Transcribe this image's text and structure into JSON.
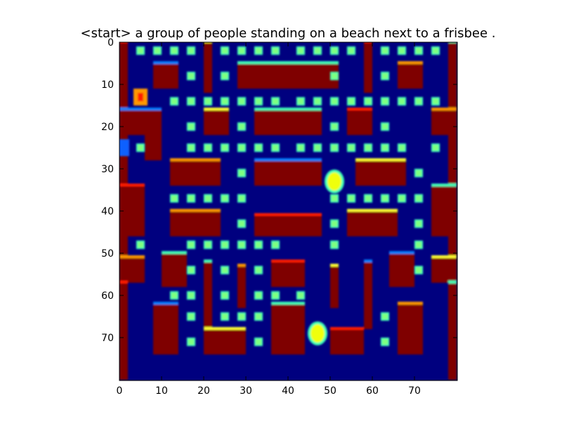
{
  "title": "<start> a group of people standing on a beach next to a frisbee .",
  "chart_data": {
    "type": "heatmap",
    "title": "<start> a group of people standing on a beach next to a frisbee .",
    "colormap": "jet",
    "xlim": [
      0,
      80
    ],
    "ylim": [
      80,
      0
    ],
    "x_ticks": [
      0,
      10,
      20,
      30,
      40,
      50,
      60,
      70
    ],
    "y_ticks": [
      0,
      10,
      20,
      30,
      40,
      50,
      60,
      70
    ],
    "xlabel": "",
    "ylabel": "",
    "grid": false,
    "colors": {
      "background": "#00007f",
      "wall": "#7f0000",
      "wall_edge_red": "#ff1a00",
      "wall_edge_cyan": "#3fffb7",
      "wall_edge_blue": "#0080ff",
      "wall_edge_orange": "#ff9900",
      "wall_edge_yellow": "#ffff33",
      "pellet": "#7fff7f",
      "pacman": "#f0ff10",
      "ghost_blue": "#1060ff",
      "ghost_orange": "#ff8000"
    },
    "walls": [
      [
        0,
        0,
        2,
        80
      ],
      [
        78,
        0,
        2,
        80
      ],
      [
        8,
        5,
        6,
        6
      ],
      [
        66,
        5,
        6,
        6
      ],
      [
        20,
        0,
        2,
        12
      ],
      [
        58,
        0,
        2,
        12
      ],
      [
        28,
        5,
        24,
        6
      ],
      [
        0,
        16,
        6,
        6
      ],
      [
        74,
        16,
        6,
        6
      ],
      [
        20,
        16,
        6,
        6
      ],
      [
        54,
        16,
        6,
        6
      ],
      [
        32,
        16,
        16,
        6
      ],
      [
        6,
        16,
        4,
        12
      ],
      [
        12,
        28,
        12,
        6
      ],
      [
        56,
        28,
        12,
        6
      ],
      [
        0,
        34,
        6,
        12
      ],
      [
        74,
        34,
        6,
        12
      ],
      [
        32,
        28,
        16,
        6
      ],
      [
        12,
        40,
        12,
        6
      ],
      [
        54,
        40,
        12,
        6
      ],
      [
        32,
        41,
        16,
        5
      ],
      [
        10,
        50,
        6,
        8
      ],
      [
        64,
        50,
        6,
        8
      ],
      [
        0,
        51,
        6,
        6
      ],
      [
        74,
        51,
        6,
        6
      ],
      [
        36,
        52,
        8,
        6
      ],
      [
        20,
        52,
        2,
        16
      ],
      [
        58,
        52,
        2,
        16
      ],
      [
        28,
        53,
        2,
        10
      ],
      [
        50,
        53,
        2,
        10
      ],
      [
        0,
        57,
        2,
        23
      ],
      [
        78,
        57,
        2,
        23
      ],
      [
        8,
        62,
        6,
        12
      ],
      [
        66,
        62,
        6,
        12
      ],
      [
        20,
        68,
        10,
        6
      ],
      [
        50,
        68,
        8,
        6
      ],
      [
        36,
        62,
        8,
        12
      ]
    ],
    "pellets": [
      [
        5,
        2
      ],
      [
        9,
        2
      ],
      [
        13,
        2
      ],
      [
        17,
        2
      ],
      [
        25,
        2
      ],
      [
        29,
        2
      ],
      [
        33,
        2
      ],
      [
        37,
        2
      ],
      [
        43,
        2
      ],
      [
        47,
        2
      ],
      [
        51,
        2
      ],
      [
        55,
        2
      ],
      [
        63,
        2
      ],
      [
        67,
        2
      ],
      [
        71,
        2
      ],
      [
        75,
        2
      ],
      [
        17,
        8
      ],
      [
        25,
        8
      ],
      [
        51,
        8
      ],
      [
        63,
        8
      ],
      [
        13,
        14
      ],
      [
        17,
        14
      ],
      [
        21,
        14
      ],
      [
        25,
        14
      ],
      [
        29,
        14
      ],
      [
        33,
        14
      ],
      [
        37,
        14
      ],
      [
        43,
        14
      ],
      [
        47,
        14
      ],
      [
        51,
        14
      ],
      [
        55,
        14
      ],
      [
        59,
        14
      ],
      [
        63,
        14
      ],
      [
        67,
        14
      ],
      [
        71,
        14
      ],
      [
        75,
        14
      ],
      [
        17,
        20
      ],
      [
        29,
        20
      ],
      [
        51,
        20
      ],
      [
        63,
        20
      ],
      [
        5,
        25
      ],
      [
        17,
        25
      ],
      [
        21,
        25
      ],
      [
        25,
        25
      ],
      [
        29,
        25
      ],
      [
        33,
        25
      ],
      [
        37,
        25
      ],
      [
        43,
        25
      ],
      [
        47,
        25
      ],
      [
        51,
        25
      ],
      [
        55,
        25
      ],
      [
        59,
        25
      ],
      [
        63,
        25
      ],
      [
        67,
        25
      ],
      [
        75,
        25
      ],
      [
        29,
        31
      ],
      [
        71,
        31
      ],
      [
        13,
        37
      ],
      [
        17,
        37
      ],
      [
        21,
        37
      ],
      [
        25,
        37
      ],
      [
        29,
        37
      ],
      [
        51,
        37
      ],
      [
        55,
        37
      ],
      [
        59,
        37
      ],
      [
        63,
        37
      ],
      [
        67,
        37
      ],
      [
        71,
        37
      ],
      [
        29,
        43
      ],
      [
        51,
        43
      ],
      [
        71,
        43
      ],
      [
        5,
        48
      ],
      [
        17,
        48
      ],
      [
        21,
        48
      ],
      [
        25,
        48
      ],
      [
        29,
        48
      ],
      [
        33,
        48
      ],
      [
        37,
        48
      ],
      [
        51,
        48
      ],
      [
        71,
        48
      ],
      [
        17,
        54
      ],
      [
        25,
        54
      ],
      [
        33,
        54
      ],
      [
        71,
        54
      ],
      [
        13,
        60
      ],
      [
        17,
        60
      ],
      [
        25,
        60
      ],
      [
        33,
        60
      ],
      [
        37,
        60
      ],
      [
        43,
        60
      ],
      [
        17,
        65
      ],
      [
        25,
        65
      ],
      [
        29,
        65
      ],
      [
        33,
        65
      ],
      [
        63,
        65
      ],
      [
        17,
        71
      ],
      [
        33,
        71
      ],
      [
        63,
        71
      ]
    ],
    "pacman": [
      [
        51,
        33
      ],
      [
        47,
        69
      ]
    ],
    "ghosts": [
      [
        5,
        13
      ],
      [
        1,
        25
      ]
    ]
  }
}
